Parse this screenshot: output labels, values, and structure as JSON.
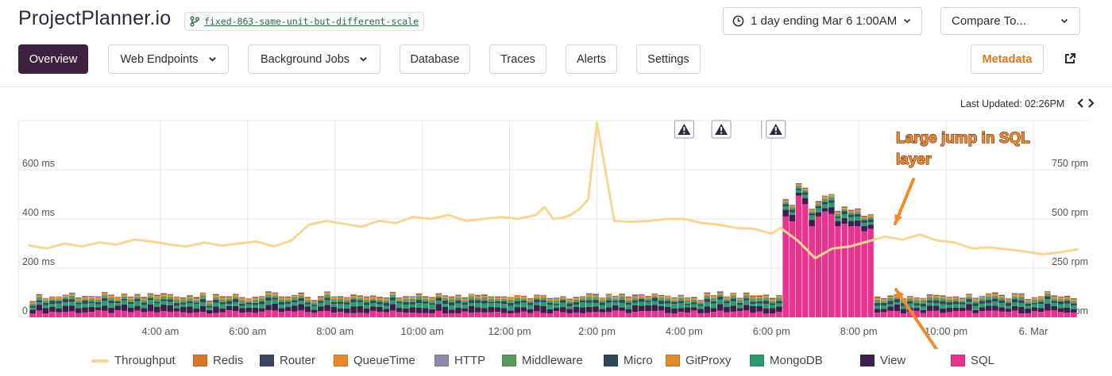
{
  "app": {
    "title": "ProjectPlanner.io",
    "branch": "fixed-863-same-unit-but-different-scale"
  },
  "controls": {
    "range_label": "1 day ending Mar 6 1:00AM",
    "compare_label": "Compare To..."
  },
  "nav": {
    "overview": "Overview",
    "web_endpoints": "Web Endpoints",
    "background_jobs": "Background Jobs",
    "database": "Database",
    "traces": "Traces",
    "alerts": "Alerts",
    "settings": "Settings",
    "metadata": "Metadata"
  },
  "status": {
    "last_updated": "Last Updated: 02:26PM"
  },
  "colors": {
    "throughput": "#f6d692",
    "sql": "#e8338f",
    "view": "#3d1f4f",
    "mongodb": "#2e9a6e",
    "gitproxy": "#e08a2a",
    "micro": "#2d4a5a",
    "middleware": "#5a9a5c",
    "http": "#8d8aa8",
    "queuetime": "#e8882c",
    "router": "#3a4660",
    "redis": "#d9742c",
    "annotation": "#f28a2c",
    "grid": "#e8e8ec"
  },
  "chart_data": {
    "type": "bar",
    "title": "",
    "annotation_text": "Large jump in SQL layer",
    "annotation_lines": [
      "Large jump in SQL",
      "layer"
    ],
    "ylim_left": [
      0,
      800
    ],
    "ylim_right": [
      0,
      1000
    ],
    "y_left_ticks": [
      "0 ms",
      "200 ms",
      "400 ms",
      "600 ms"
    ],
    "y_left_values": [
      0,
      200,
      400,
      600
    ],
    "y_right_ticks": [
      "0 rpm",
      "250 rpm",
      "500 rpm",
      "750 rpm"
    ],
    "y_right_values": [
      0,
      250,
      500,
      750
    ],
    "x_ticks": [
      "4:00 am",
      "6:00 am",
      "8:00 am",
      "10:00 am",
      "12:00 pm",
      "2:00 pm",
      "4:00 pm",
      "6:00 pm",
      "8:00 pm",
      "10:00 pm",
      "6. Mar"
    ],
    "x_tick_hours": [
      4,
      6,
      8,
      10,
      12,
      14,
      16,
      18,
      20,
      22,
      24
    ],
    "x_range_hours": [
      1.0,
      25.0
    ],
    "alert_markers_hours": [
      16.0,
      16.85,
      18.1
    ],
    "legend": [
      "Throughput",
      "Redis",
      "Router",
      "QueueTime",
      "HTTP",
      "Middleware",
      "Micro",
      "GitProxy",
      "MongoDB",
      "View",
      "SQL"
    ],
    "series": [
      {
        "name": "Throughput",
        "type": "line",
        "axis": "right",
        "x": [
          1.0,
          1.4,
          1.8,
          2.2,
          2.6,
          3.0,
          3.4,
          3.8,
          4.2,
          4.6,
          5.0,
          5.4,
          5.8,
          6.2,
          6.6,
          7.0,
          7.4,
          7.8,
          8.2,
          8.6,
          9.0,
          9.4,
          9.8,
          10.2,
          10.6,
          11.0,
          11.4,
          11.8,
          12.2,
          12.6,
          12.8,
          13.0,
          13.2,
          13.4,
          13.6,
          13.8,
          14.0,
          14.4,
          14.8,
          15.2,
          15.6,
          16.0,
          16.4,
          16.8,
          17.2,
          17.6,
          18.0,
          18.2,
          18.6,
          19.0,
          19.4,
          19.8,
          20.2,
          20.6,
          21.0,
          21.4,
          21.8,
          22.2,
          22.6,
          23.0,
          23.4,
          23.8,
          24.2,
          24.6,
          25.0
        ],
        "y": [
          365,
          350,
          375,
          360,
          380,
          370,
          395,
          385,
          370,
          360,
          380,
          365,
          375,
          385,
          360,
          390,
          470,
          490,
          475,
          460,
          490,
          480,
          510,
          500,
          520,
          490,
          500,
          510,
          500,
          520,
          560,
          500,
          505,
          520,
          550,
          600,
          990,
          490,
          485,
          490,
          500,
          500,
          480,
          470,
          455,
          450,
          425,
          455,
          390,
          300,
          350,
          360,
          385,
          410,
          395,
          420,
          390,
          380,
          350,
          355,
          345,
          335,
          320,
          330,
          345
        ]
      },
      {
        "name": "SQL",
        "type": "bar",
        "axis": "left",
        "range_hours": [
          1.0,
          25.0
        ],
        "baseline_ms": 22,
        "spike_range_hours": [
          18.3,
          20.3
        ],
        "spike_ms": [
          470,
          450,
          460,
          555,
          520,
          500,
          430,
          470,
          480,
          490,
          480,
          470,
          430,
          440,
          420,
          430,
          430,
          440,
          410,
          420
        ]
      },
      {
        "name": "View",
        "type": "bar",
        "axis": "left",
        "value_ms": 20,
        "spike_ms": 20
      },
      {
        "name": "MongoDB",
        "type": "bar",
        "axis": "left",
        "value_ms": 14,
        "spike_ms": 14
      },
      {
        "name": "Middleware",
        "type": "bar",
        "axis": "left",
        "value_ms": 10,
        "spike_ms": 10
      },
      {
        "name": "Micro",
        "type": "bar",
        "axis": "left",
        "value_ms": 10,
        "spike_ms": 10
      },
      {
        "name": "GitProxy",
        "type": "bar",
        "axis": "left",
        "value_ms": 3,
        "spike_ms": 3
      },
      {
        "name": "QueueTime",
        "type": "bar",
        "axis": "left",
        "value_ms": 3,
        "spike_ms": 3
      },
      {
        "name": "HTTP",
        "type": "bar",
        "axis": "left",
        "value_ms": 2,
        "spike_ms": 2
      },
      {
        "name": "Router",
        "type": "bar",
        "axis": "left",
        "value_ms": 2,
        "spike_ms": 2
      },
      {
        "name": "Redis",
        "type": "bar",
        "axis": "left",
        "value_ms": 2,
        "spike_ms": 2
      }
    ],
    "grid": true,
    "legend_position": "bottom"
  }
}
